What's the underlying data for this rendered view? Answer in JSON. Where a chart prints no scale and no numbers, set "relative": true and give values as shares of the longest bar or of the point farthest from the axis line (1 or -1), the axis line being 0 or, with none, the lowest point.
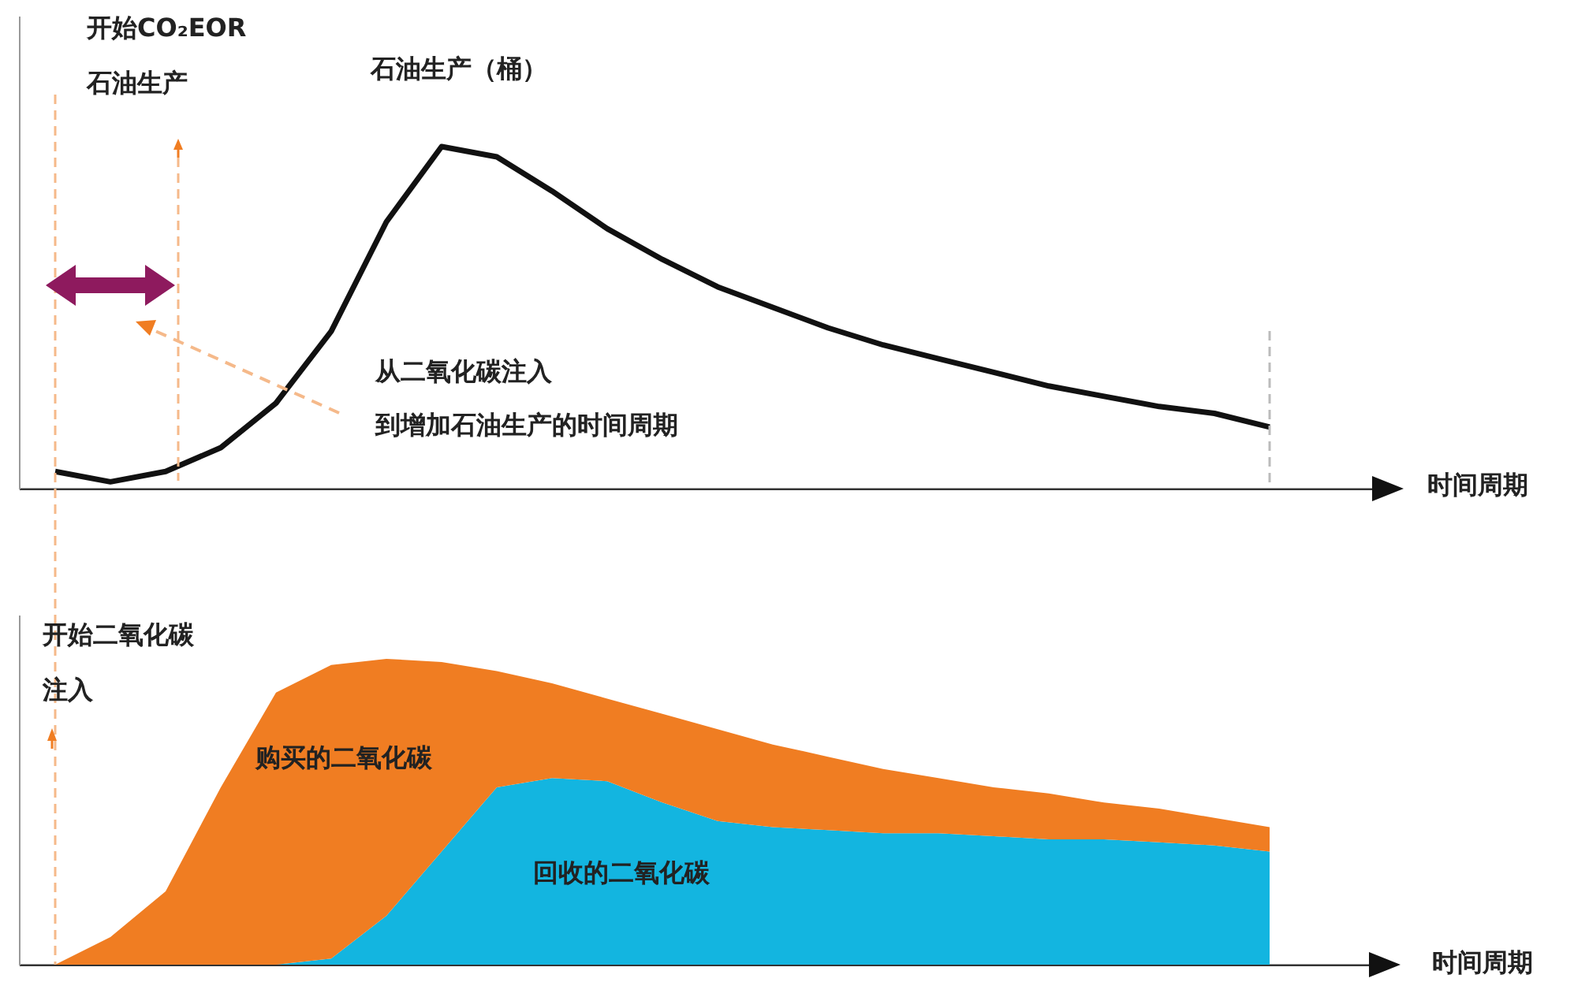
{
  "chart_data": [
    {
      "type": "line",
      "relative": true,
      "xlabel": "时间周期",
      "categories": [
        null,
        null,
        null,
        null,
        null,
        null,
        null,
        null,
        null,
        null,
        null,
        null,
        null,
        null,
        null,
        null,
        null,
        null,
        null,
        null,
        null,
        null,
        null
      ],
      "annotations": [
        "开始CO₂EOR",
        "石油生产",
        "从二氧化碳注入",
        "到增加石油生产的时间周期"
      ],
      "series": [
        {
          "name": "石油生产（桶）",
          "color": "#111111",
          "values": [
            0.05,
            0.02,
            0.05,
            0.12,
            0.25,
            0.46,
            0.78,
            1.0,
            0.97,
            0.87,
            0.76,
            0.67,
            0.59,
            0.53,
            0.47,
            0.42,
            0.38,
            0.34,
            0.3,
            0.27,
            0.24,
            0.22,
            0.18
          ]
        }
      ]
    },
    {
      "type": "area",
      "relative": true,
      "stacked": true,
      "xlabel": "时间周期",
      "categories": [
        null,
        null,
        null,
        null,
        null,
        null,
        null,
        null,
        null,
        null,
        null,
        null,
        null,
        null,
        null,
        null,
        null,
        null,
        null,
        null,
        null,
        null,
        null
      ],
      "annotations": [
        "开始二氧化碳",
        "注入"
      ],
      "series": [
        {
          "name": "回收的二氧化碳",
          "color": "#13b5e0",
          "values": [
            0,
            0,
            0,
            0,
            0,
            0.02,
            0.16,
            0.37,
            0.58,
            0.61,
            0.6,
            0.53,
            0.47,
            0.45,
            0.44,
            0.43,
            0.43,
            0.42,
            0.41,
            0.41,
            0.4,
            0.39,
            0.37
          ]
        },
        {
          "name": "购买的二氧化碳",
          "color": "#f07d22",
          "values": [
            0,
            0.09,
            0.24,
            0.58,
            0.89,
            0.96,
            0.84,
            0.62,
            0.38,
            0.31,
            0.27,
            0.29,
            0.3,
            0.27,
            0.24,
            0.21,
            0.18,
            0.16,
            0.15,
            0.12,
            0.11,
            0.09,
            0.08
          ]
        }
      ]
    }
  ]
}
